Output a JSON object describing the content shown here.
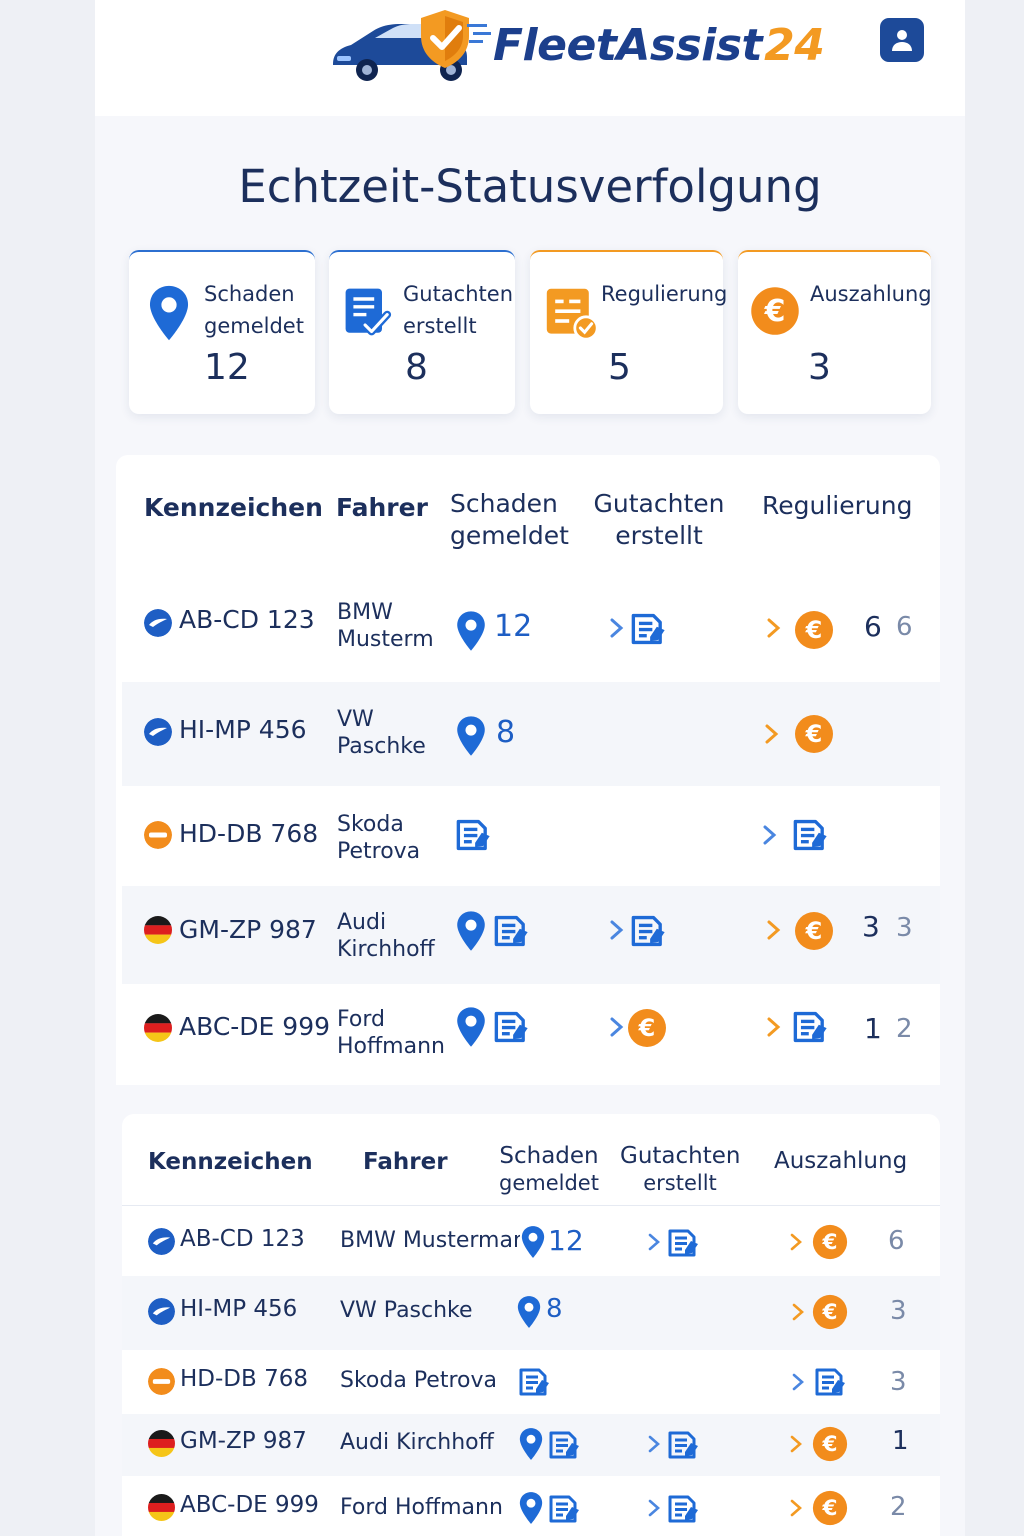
{
  "app": {
    "brand": "FleetAssist",
    "brand_num": "24",
    "page_title": "Echtzeit-Statusverfolgung"
  },
  "colors": {
    "primary": "#1d4a99",
    "accent": "#f39a22",
    "blue": "#2c6fd0"
  },
  "status_cards": [
    {
      "label_l1": "Schaden",
      "label_l2": "gemeldet",
      "count": "12",
      "icon": "map-pin-icon"
    },
    {
      "label_l1": "Gutachten",
      "label_l2": "erstellt",
      "count": "8",
      "icon": "document-check-icon"
    },
    {
      "label_l1": "Regulierung",
      "label_l2": "",
      "count": "5",
      "icon": "settlement-check-icon"
    },
    {
      "label_l1": "Auszahlung",
      "label_l2": "",
      "count": "3",
      "icon": "euro-icon"
    }
  ],
  "table1": {
    "headers": {
      "plate": "Kennzeichen",
      "driver": "Fahrer",
      "damage_l1": "Schaden",
      "damage_l2": "gemeldet",
      "report_l1": "Gutachten",
      "report_l2": "erstellt",
      "settlement": "Regulierung"
    },
    "rows": [
      {
        "plate": "AB-CD 123",
        "car": "BMW",
        "driver": "Musterm",
        "num": "12",
        "right": "6",
        "grey": "6"
      },
      {
        "plate": "HI-MP 456",
        "car": "VW",
        "driver": "Paschke",
        "num": "8",
        "right": "",
        "grey": ""
      },
      {
        "plate": "HD-DB 768",
        "car": "Skoda",
        "driver": "Petrova",
        "num": "",
        "right": "",
        "grey": ""
      },
      {
        "plate": "GM-ZP 987",
        "car": "Audi",
        "driver": "Kirchhoff",
        "num": "",
        "right": "3",
        "grey": "3"
      },
      {
        "plate": "ABC-DE 999",
        "car": "Ford",
        "driver": "Hoffmann",
        "num": "",
        "right": "1",
        "grey": "2"
      }
    ]
  },
  "table2": {
    "headers": {
      "plate": "Kennzeichen",
      "driver": "Fahrer",
      "damage_l1": "Schaden",
      "damage_l2": "gemeldet",
      "report_l1": "Gutachten",
      "report_l2": "erstellt",
      "payout": "Auszahlung"
    },
    "rows": [
      {
        "plate": "AB-CD 123",
        "driver": "BMW Mustermann",
        "num": "12",
        "right": "6"
      },
      {
        "plate": "HI-MP 456",
        "driver": "VW Paschke",
        "num": "8",
        "right": "3"
      },
      {
        "plate": "HD-DB 768",
        "driver": "Skoda Petrova",
        "num": "",
        "right": "3"
      },
      {
        "plate": "GM-ZP 987",
        "driver": "Audi Kirchhoff",
        "num": "",
        "right": "1"
      },
      {
        "plate": "ABC-DE 999",
        "driver": "Ford Hoffmann",
        "num": "",
        "right": "2"
      }
    ]
  }
}
